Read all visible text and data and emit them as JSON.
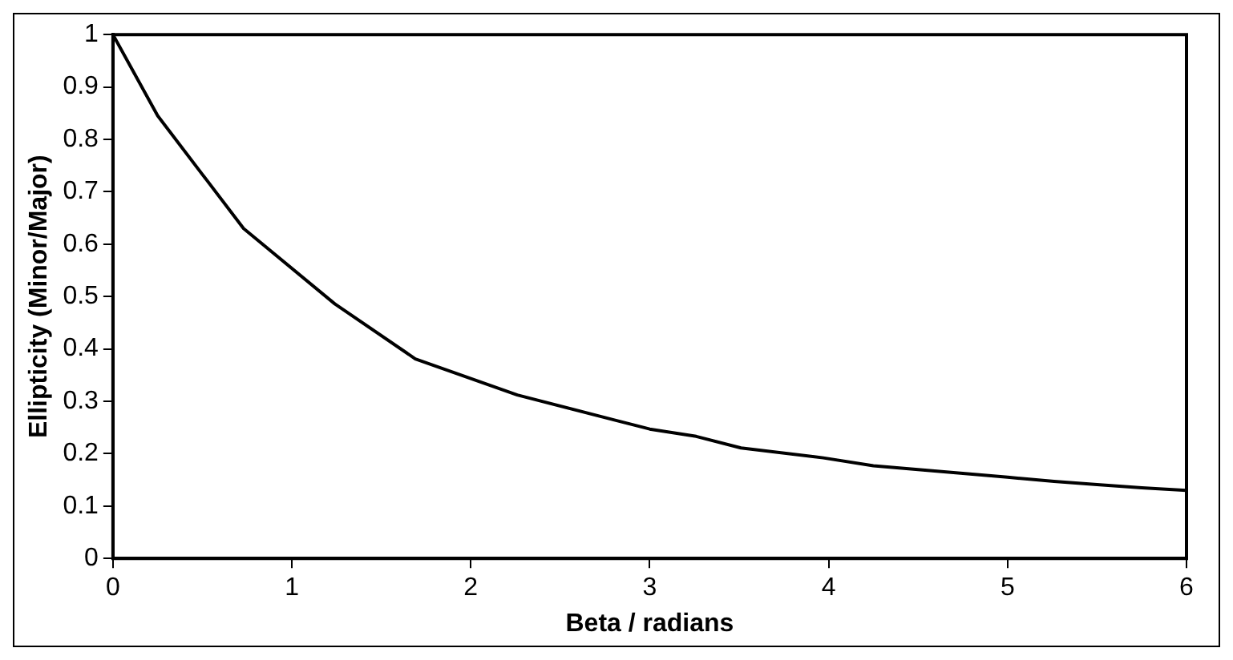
{
  "chart_data": {
    "type": "line",
    "xlabel": "Beta / radians",
    "ylabel": "Ellipticity (Minor/Major)",
    "x": [
      0,
      0.25,
      0.73,
      1.24,
      1.69,
      2.26,
      3.0,
      3.26,
      3.51,
      3.97,
      4.25,
      5.0,
      5.26,
      5.5,
      5.75,
      6
    ],
    "series": [
      {
        "color": "#000000",
        "values": [
          1,
          0.845,
          0.63,
          0.486,
          0.381,
          0.312,
          0.247,
          0.233,
          0.211,
          0.192,
          0.177,
          0.155,
          0.147,
          0.141,
          0.135,
          0.13
        ]
      }
    ],
    "xlim": [
      0,
      6
    ],
    "xticks": [
      0,
      1,
      2,
      3,
      4,
      5,
      6
    ],
    "ylim": [
      0,
      1
    ],
    "yticks": [
      0,
      0.1,
      0.2,
      0.3,
      0.4,
      0.5,
      0.6,
      0.7,
      0.8,
      0.9,
      1
    ],
    "grid": false,
    "legend": false,
    "marker": "none",
    "line_style": "solid"
  }
}
